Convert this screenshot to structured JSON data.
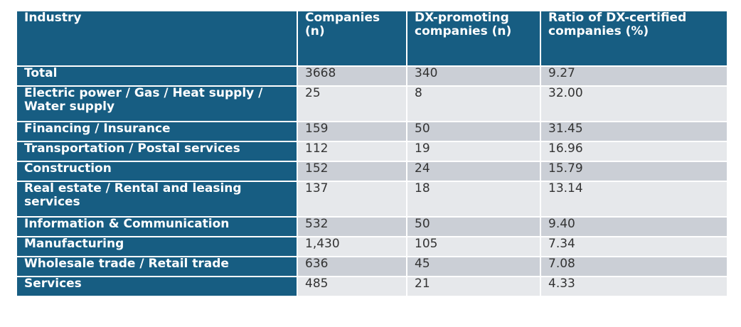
{
  "header": {
    "industry": "Industry",
    "companies": "Companies (n)",
    "dx_promoting": "DX-promoting companies (n)",
    "ratio": "Ratio of DX-certified companies (%)"
  },
  "rows": [
    {
      "industry": "Total",
      "companies": "3668",
      "dx_promoting": "340",
      "ratio": "9.27"
    },
    {
      "industry": "Electric power / Gas / Heat supply / Water supply",
      "companies": "25",
      "dx_promoting": "8",
      "ratio": "32.00"
    },
    {
      "industry": "Financing / Insurance",
      "companies": "159",
      "dx_promoting": "50",
      "ratio": "31.45"
    },
    {
      "industry": "Transportation / Postal services",
      "companies": "112",
      "dx_promoting": "19",
      "ratio": "16.96"
    },
    {
      "industry": "Construction",
      "companies": "152",
      "dx_promoting": "24",
      "ratio": "15.79"
    },
    {
      "industry": "Real estate / Rental and leasing services",
      "companies": "137",
      "dx_promoting": "18",
      "ratio": "13.14"
    },
    {
      "industry": "Information & Communication",
      "companies": "532",
      "dx_promoting": "50",
      "ratio": "9.40"
    },
    {
      "industry": "Manufacturing",
      "companies": "1,430",
      "dx_promoting": "105",
      "ratio": "7.34"
    },
    {
      "industry": "Wholesale trade / Retail trade",
      "companies": "636",
      "dx_promoting": "45",
      "ratio": "7.08"
    },
    {
      "industry": "Services",
      "companies": "485",
      "dx_promoting": "21",
      "ratio": "4.33"
    }
  ],
  "colors": {
    "header_bg": "#175d82",
    "row_odd_bg": "#cbcfd6",
    "row_even_bg": "#e6e8eb"
  }
}
